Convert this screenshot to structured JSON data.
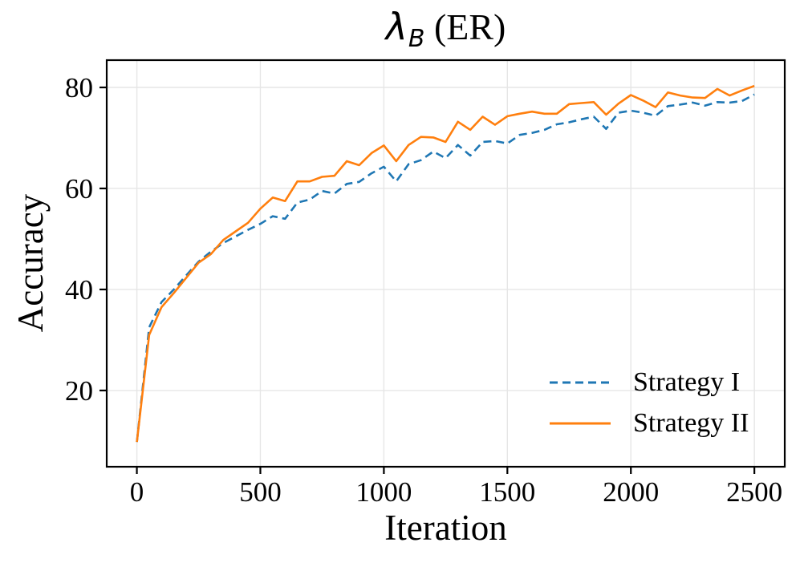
{
  "figure": {
    "background": "#ffffff",
    "text_color": "#000000"
  },
  "chart_data": {
    "type": "line",
    "title": "λ_B (ER)",
    "title_parts": {
      "lambda": "λ",
      "subscript": "B",
      "rest": " (ER)"
    },
    "xlabel": "Iteration",
    "ylabel": "Accuracy",
    "xlim": [
      -122,
      2623
    ],
    "ylim": [
      4.9,
      85.4
    ],
    "x_ticks": [
      0,
      500,
      1000,
      1500,
      2000,
      2500
    ],
    "y_ticks": [
      20,
      40,
      60,
      80
    ],
    "grid": true,
    "grid_color": "#e6e6e6",
    "spine_color": "#000000",
    "legend": {
      "position": "lower right",
      "frame": false
    },
    "x": [
      0,
      50,
      100,
      150,
      200,
      250,
      300,
      350,
      400,
      450,
      500,
      550,
      600,
      650,
      700,
      750,
      800,
      850,
      900,
      950,
      1000,
      1050,
      1100,
      1150,
      1200,
      1250,
      1300,
      1350,
      1400,
      1450,
      1500,
      1550,
      1600,
      1650,
      1700,
      1750,
      1800,
      1850,
      1900,
      1950,
      2000,
      2050,
      2100,
      2150,
      2200,
      2250,
      2300,
      2350,
      2400,
      2450,
      2500
    ],
    "series": [
      {
        "name": "Strategy I",
        "color": "#1f77b4",
        "line_style": "dashed",
        "line_width": 2.6,
        "values": [
          9.8,
          32.5,
          37.5,
          40.0,
          42.8,
          45.5,
          47.5,
          49.2,
          50.5,
          51.8,
          53.0,
          54.5,
          54.0,
          57.2,
          57.8,
          59.5,
          59.0,
          60.9,
          61.3,
          63.0,
          64.3,
          61.4,
          64.8,
          65.6,
          67.3,
          66.0,
          68.6,
          66.5,
          69.2,
          69.4,
          68.9,
          70.6,
          71.0,
          71.6,
          72.7,
          73.1,
          73.7,
          74.2,
          71.8,
          75.0,
          75.4,
          75.0,
          74.4,
          76.3,
          76.6,
          77.0,
          76.4,
          77.1,
          77.0,
          77.3,
          78.6
        ]
      },
      {
        "name": "Strategy II",
        "color": "#ff7f0e",
        "line_style": "solid",
        "line_width": 2.6,
        "values": [
          9.8,
          31.0,
          36.5,
          39.3,
          42.3,
          45.3,
          47.0,
          49.8,
          51.5,
          53.2,
          56.0,
          58.2,
          57.5,
          61.4,
          61.4,
          62.3,
          62.5,
          65.4,
          64.6,
          67.0,
          68.5,
          65.4,
          68.6,
          70.2,
          70.1,
          69.2,
          73.2,
          71.6,
          74.2,
          72.6,
          74.3,
          74.8,
          75.2,
          74.8,
          74.8,
          76.7,
          76.9,
          77.1,
          74.6,
          76.8,
          78.5,
          77.4,
          76.1,
          79.0,
          78.4,
          78.0,
          77.9,
          79.7,
          78.4,
          79.4,
          80.3
        ]
      }
    ]
  }
}
